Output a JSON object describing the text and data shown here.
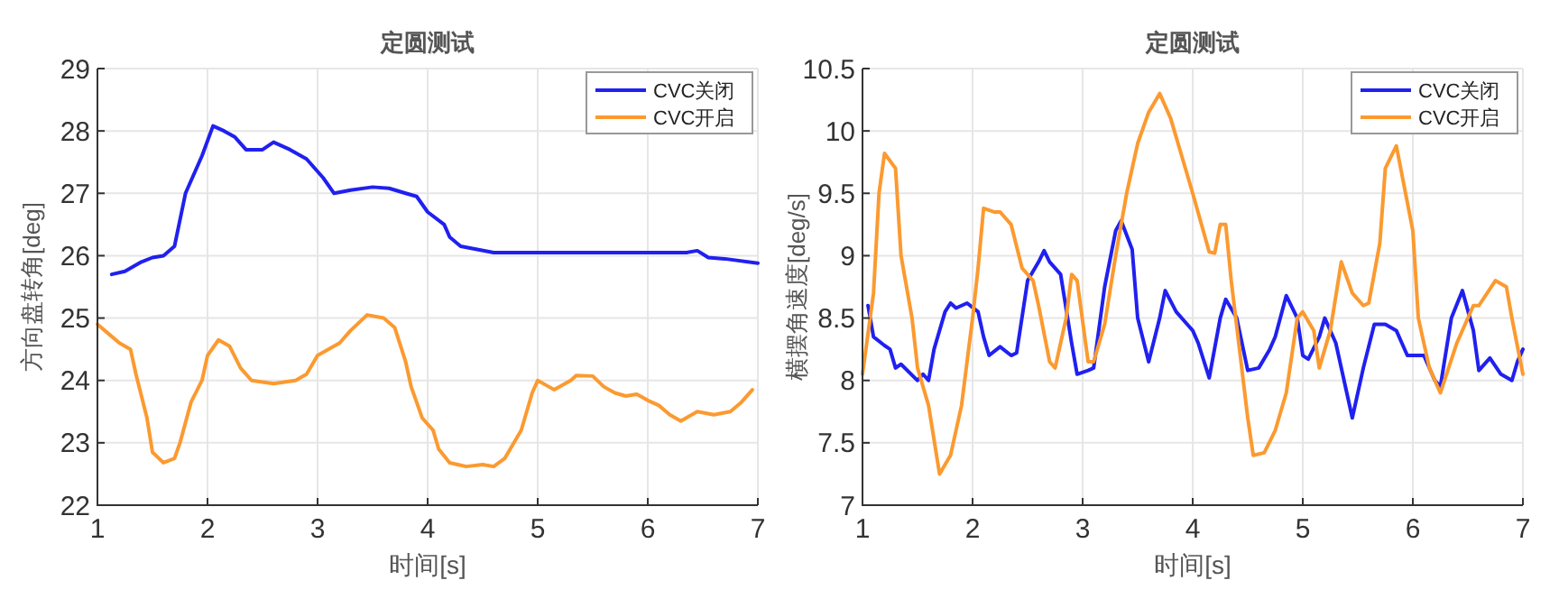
{
  "chart_data": [
    {
      "type": "line",
      "title": "定圆测试",
      "xlabel": "时间[s]",
      "ylabel": "方向盘转角[deg]",
      "xlim": [
        1,
        7
      ],
      "xticks": [
        1,
        2,
        3,
        4,
        5,
        6,
        7
      ],
      "ylim": [
        22,
        29
      ],
      "yticks": [
        22,
        23,
        24,
        25,
        26,
        27,
        28,
        29
      ],
      "grid": true,
      "legend": "top right",
      "series": [
        {
          "name": "CVC关闭",
          "color": "#2020f0",
          "x": [
            1.13,
            1.25,
            1.4,
            1.5,
            1.6,
            1.7,
            1.8,
            1.95,
            2.05,
            2.15,
            2.25,
            2.35,
            2.5,
            2.6,
            2.75,
            2.9,
            3.05,
            3.15,
            3.3,
            3.5,
            3.65,
            3.8,
            3.9,
            4.0,
            4.15,
            4.2,
            4.3,
            4.45,
            4.6,
            5.0,
            6.0,
            6.35,
            6.45,
            6.55,
            6.7,
            7.0
          ],
          "values": [
            25.7,
            25.75,
            25.9,
            25.97,
            26.0,
            26.15,
            27.0,
            27.6,
            28.08,
            28.0,
            27.9,
            27.7,
            27.7,
            27.82,
            27.7,
            27.55,
            27.25,
            27.0,
            27.05,
            27.1,
            27.08,
            27.0,
            26.95,
            26.7,
            26.5,
            26.3,
            26.15,
            26.1,
            26.05,
            26.05,
            26.05,
            26.05,
            26.08,
            25.97,
            25.95,
            25.88
          ]
        },
        {
          "name": "CVC开启",
          "color": "#fb9a30",
          "x": [
            1.0,
            1.1,
            1.2,
            1.3,
            1.35,
            1.45,
            1.5,
            1.6,
            1.7,
            1.75,
            1.85,
            1.95,
            2.0,
            2.1,
            2.2,
            2.3,
            2.4,
            2.6,
            2.8,
            2.9,
            3.0,
            3.2,
            3.3,
            3.45,
            3.6,
            3.7,
            3.8,
            3.85,
            3.95,
            4.05,
            4.1,
            4.2,
            4.35,
            4.5,
            4.6,
            4.7,
            4.85,
            4.95,
            5.0,
            5.1,
            5.15,
            5.3,
            5.35,
            5.5,
            5.6,
            5.7,
            5.8,
            5.9,
            6.0,
            6.1,
            6.2,
            6.3,
            6.45,
            6.6,
            6.75,
            6.85,
            6.95
          ],
          "values": [
            24.9,
            24.75,
            24.6,
            24.5,
            24.1,
            23.4,
            22.85,
            22.68,
            22.75,
            23.0,
            23.65,
            24.0,
            24.4,
            24.65,
            24.55,
            24.2,
            24.0,
            23.95,
            24.0,
            24.1,
            24.4,
            24.6,
            24.8,
            25.05,
            25.0,
            24.85,
            24.3,
            23.9,
            23.4,
            23.2,
            22.9,
            22.68,
            22.62,
            22.65,
            22.62,
            22.75,
            23.2,
            23.8,
            24.0,
            23.9,
            23.85,
            24.0,
            24.08,
            24.07,
            23.9,
            23.8,
            23.75,
            23.78,
            23.68,
            23.6,
            23.45,
            23.35,
            23.5,
            23.45,
            23.5,
            23.65,
            23.85
          ]
        }
      ]
    },
    {
      "type": "line",
      "title": "定圆测试",
      "xlabel": "时间[s]",
      "ylabel": "横摆角速度[deg/s]",
      "xlim": [
        1,
        7
      ],
      "xticks": [
        1,
        2,
        3,
        4,
        5,
        6,
        7
      ],
      "ylim": [
        7,
        10.5
      ],
      "yticks": [
        7,
        7.5,
        8,
        8.5,
        9,
        9.5,
        10,
        10.5
      ],
      "grid": true,
      "legend": "top right",
      "series": [
        {
          "name": "CVC关闭",
          "color": "#2020f0",
          "x": [
            1.05,
            1.1,
            1.2,
            1.25,
            1.3,
            1.35,
            1.5,
            1.55,
            1.6,
            1.65,
            1.75,
            1.8,
            1.85,
            1.95,
            2.05,
            2.1,
            2.15,
            2.25,
            2.35,
            2.4,
            2.5,
            2.6,
            2.65,
            2.7,
            2.8,
            2.9,
            2.95,
            3.05,
            3.1,
            3.2,
            3.3,
            3.35,
            3.45,
            3.5,
            3.6,
            3.7,
            3.75,
            3.85,
            3.95,
            4.0,
            4.05,
            4.15,
            4.25,
            4.3,
            4.4,
            4.5,
            4.6,
            4.7,
            4.75,
            4.85,
            4.95,
            5.0,
            5.05,
            5.15,
            5.2,
            5.3,
            5.4,
            5.45,
            5.55,
            5.65,
            5.75,
            5.85,
            5.9,
            5.95,
            6.1,
            6.2,
            6.25,
            6.35,
            6.45,
            6.55,
            6.6,
            6.7,
            6.8,
            6.9,
            6.95,
            7.0
          ],
          "values": [
            8.6,
            8.35,
            8.28,
            8.25,
            8.1,
            8.13,
            8.0,
            8.05,
            8.0,
            8.25,
            8.55,
            8.62,
            8.58,
            8.62,
            8.55,
            8.35,
            8.2,
            8.27,
            8.2,
            8.22,
            8.8,
            8.95,
            9.04,
            8.95,
            8.85,
            8.3,
            8.05,
            8.08,
            8.1,
            8.75,
            9.2,
            9.28,
            9.05,
            8.5,
            8.15,
            8.5,
            8.72,
            8.55,
            8.45,
            8.4,
            8.3,
            8.02,
            8.5,
            8.65,
            8.5,
            8.08,
            8.1,
            8.25,
            8.35,
            8.68,
            8.5,
            8.2,
            8.17,
            8.35,
            8.5,
            8.3,
            7.9,
            7.7,
            8.1,
            8.45,
            8.45,
            8.4,
            8.3,
            8.2,
            8.2,
            8.0,
            7.95,
            8.5,
            8.72,
            8.4,
            8.08,
            8.18,
            8.05,
            8.0,
            8.15,
            8.25
          ]
        },
        {
          "name": "CVC开启",
          "color": "#fb9a30",
          "x": [
            1.0,
            1.1,
            1.15,
            1.2,
            1.3,
            1.35,
            1.45,
            1.5,
            1.6,
            1.7,
            1.8,
            1.9,
            2.0,
            2.05,
            2.1,
            2.2,
            2.25,
            2.35,
            2.45,
            2.55,
            2.6,
            2.7,
            2.75,
            2.85,
            2.9,
            2.95,
            3.05,
            3.1,
            3.2,
            3.3,
            3.4,
            3.5,
            3.6,
            3.7,
            3.8,
            3.9,
            4.0,
            4.15,
            4.2,
            4.25,
            4.3,
            4.35,
            4.5,
            4.55,
            4.65,
            4.75,
            4.85,
            4.95,
            5.0,
            5.1,
            5.15,
            5.25,
            5.35,
            5.45,
            5.55,
            5.6,
            5.7,
            5.75,
            5.85,
            6.0,
            6.05,
            6.15,
            6.25,
            6.4,
            6.55,
            6.6,
            6.75,
            6.85,
            6.9,
            7.0
          ],
          "values": [
            8.05,
            8.7,
            9.5,
            9.82,
            9.7,
            9.0,
            8.5,
            8.1,
            7.8,
            7.25,
            7.4,
            7.8,
            8.5,
            8.9,
            9.38,
            9.35,
            9.35,
            9.25,
            8.9,
            8.8,
            8.6,
            8.15,
            8.1,
            8.5,
            8.85,
            8.8,
            8.15,
            8.15,
            8.45,
            9.0,
            9.5,
            9.9,
            10.15,
            10.3,
            10.1,
            9.8,
            9.5,
            9.03,
            9.02,
            9.25,
            9.25,
            8.8,
            7.7,
            7.4,
            7.42,
            7.6,
            7.9,
            8.5,
            8.55,
            8.4,
            8.1,
            8.4,
            8.95,
            8.7,
            8.6,
            8.62,
            9.1,
            9.7,
            9.88,
            9.2,
            8.5,
            8.1,
            7.9,
            8.3,
            8.6,
            8.6,
            8.8,
            8.75,
            8.5,
            8.05
          ]
        }
      ]
    }
  ]
}
